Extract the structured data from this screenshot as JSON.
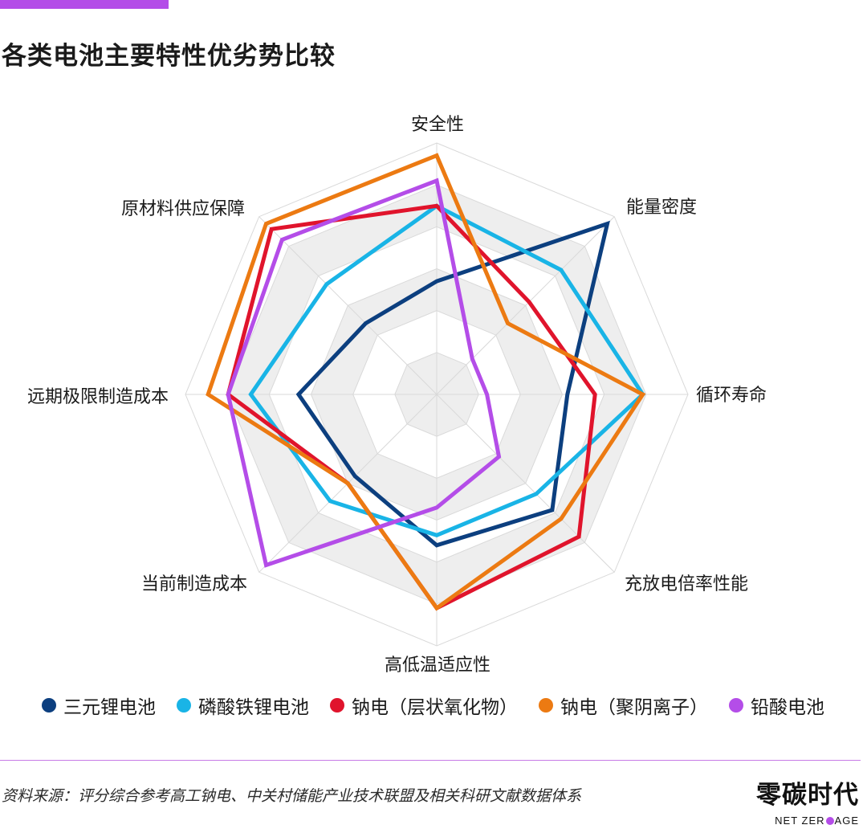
{
  "title": "各类电池主要特性优劣势比较",
  "colors": {
    "accent": "#b44de8",
    "divider": "#c77be6",
    "grid_line": "#d9d9d9",
    "band_fill": "#eeeeee"
  },
  "chart_data": {
    "type": "radar",
    "axes": [
      "安全性",
      "能量密度",
      "循环寿命",
      "充放电倍率性能",
      "高低温适应性",
      "当前制造成本",
      "远期极限制造成本",
      "原材料供应保障"
    ],
    "rmax": 10,
    "rings": 6,
    "series": [
      {
        "name": "三元锂电池",
        "color": "#0c3f7f",
        "values": [
          4.5,
          9.6,
          5.2,
          6.5,
          6.0,
          4.6,
          5.5,
          4.0
        ]
      },
      {
        "name": "磷酸铁锂电池",
        "color": "#19b4e6",
        "values": [
          7.5,
          7.0,
          8.2,
          5.6,
          5.6,
          6.0,
          7.4,
          6.2
        ]
      },
      {
        "name": "钠电（层状氧化物）",
        "color": "#e0142c",
        "values": [
          7.5,
          5.2,
          6.3,
          8.0,
          8.5,
          5.0,
          8.3,
          9.3
        ]
      },
      {
        "name": "钠电（聚阴离子）",
        "color": "#ec7a12",
        "values": [
          9.5,
          4.0,
          8.2,
          7.0,
          8.5,
          5.0,
          9.1,
          9.6
        ]
      },
      {
        "name": "铅酸电池",
        "color": "#b44de8",
        "values": [
          8.5,
          2.0,
          2.0,
          3.5,
          4.5,
          9.6,
          8.3,
          8.7
        ]
      }
    ]
  },
  "legend": [
    {
      "label": "三元锂电池",
      "color": "#0c3f7f"
    },
    {
      "label": "磷酸铁锂电池",
      "color": "#19b4e6"
    },
    {
      "label": "钠电（层状氧化物）",
      "color": "#e0142c"
    },
    {
      "label": "钠电（聚阴离子）",
      "color": "#ec7a12"
    },
    {
      "label": "铅酸电池",
      "color": "#b44de8"
    }
  ],
  "source": "资料来源：评分综合参考高工钠电、中关村储能产业技术联盟及相关科研文献数据体系",
  "logo": {
    "cn": "零碳时代",
    "en_left": "NET ZER",
    "en_right": "AGE",
    "dot_color": "#b44de8"
  }
}
